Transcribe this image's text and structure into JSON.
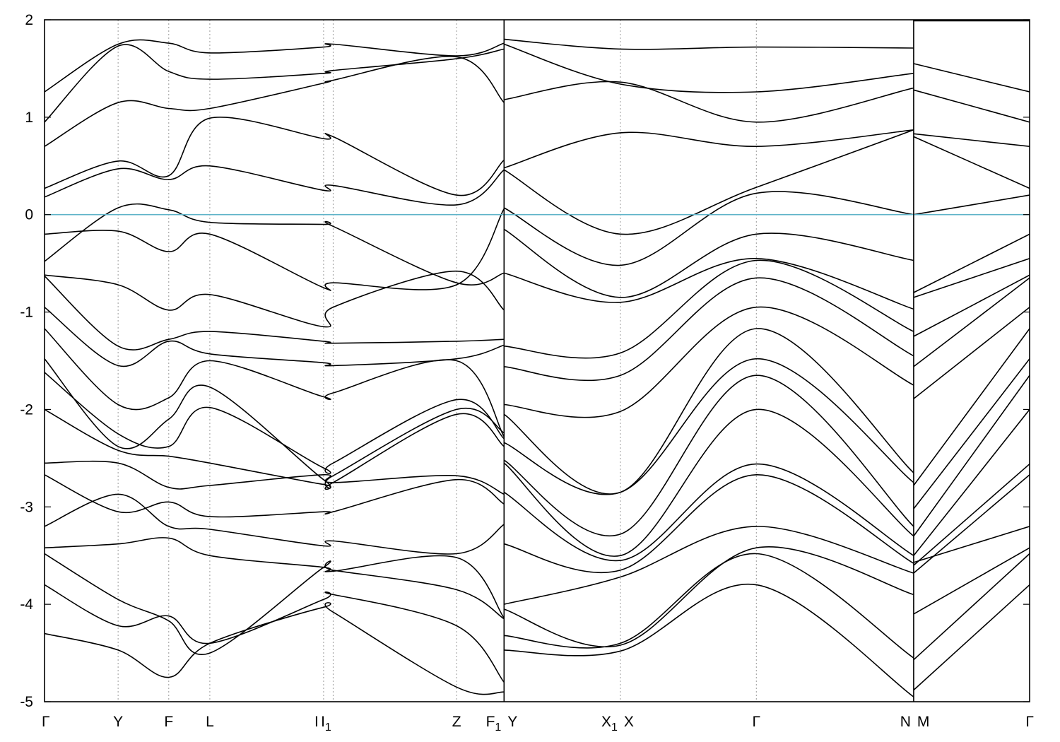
{
  "chart_data": {
    "type": "line",
    "title": "",
    "xlabel": "",
    "ylabel": "",
    "ylim": [
      -5,
      2
    ],
    "yticks": [
      -5,
      -4,
      -3,
      -2,
      -1,
      0,
      1,
      2
    ],
    "ytick_labels": [
      "-5",
      "-4",
      "-3",
      "-2",
      "-1",
      "0",
      "1",
      "2"
    ],
    "grid": "vertical dashed lines at high-symmetry points",
    "legend": "none",
    "fermi_level": {
      "value": 0,
      "color": "#5fb3c8"
    },
    "x_range": [
      0,
      1
    ],
    "kpoints": [
      {
        "label": "Γ",
        "x": 0.0
      },
      {
        "label": "Y",
        "x": 0.0747
      },
      {
        "label": "F",
        "x": 0.1261
      },
      {
        "label": "L",
        "x": 0.1678
      },
      {
        "label": "I",
        "x": 0.2833
      },
      {
        "label": "I",
        "sub": "1",
        "x": 0.293
      },
      {
        "label": "Z",
        "x": 0.4183
      },
      {
        "label": "F",
        "sub": "1",
        "x": 0.4665
      },
      {
        "label": "Y",
        "x": 0.4665
      },
      {
        "label": "X",
        "sub": "1",
        "x": 0.5846
      },
      {
        "label": "X",
        "x": 0.5846
      },
      {
        "label": "Γ",
        "x": 0.7226
      },
      {
        "label": "N",
        "x": 0.8823
      },
      {
        "label": "M",
        "x": 0.8823
      },
      {
        "label": "Γ",
        "x": 1.0
      }
    ],
    "breaks": [
      0.4665,
      0.8823
    ],
    "band_x": [
      0.0,
      0.0747,
      0.1261,
      0.1678,
      0.2833,
      0.293,
      0.4183,
      0.4665,
      0.4665,
      0.5846,
      0.7226,
      0.8823,
      0.8823,
      1.0
    ],
    "series": [
      {
        "values": [
          -4.3,
          -4.47,
          -4.75,
          -4.4,
          -4.03,
          -4.08,
          -4.85,
          -4.9,
          -4.47,
          -4.48,
          -3.8,
          -4.95,
          -4.88,
          -3.8
        ]
      },
      {
        "values": [
          -3.8,
          -4.22,
          -4.12,
          -4.4,
          -3.95,
          -3.9,
          -4.22,
          -4.8,
          -4.32,
          -4.4,
          -3.48,
          -4.55,
          -4.57,
          -3.48
        ]
      },
      {
        "values": [
          -3.48,
          -3.95,
          -4.17,
          -4.5,
          -3.62,
          -3.65,
          -3.85,
          -4.15,
          -4.05,
          -4.42,
          -3.42,
          -3.9,
          -4.1,
          -3.42
        ]
      },
      {
        "values": [
          -3.42,
          -3.38,
          -3.32,
          -3.5,
          -3.62,
          -3.66,
          -3.52,
          -4.14,
          -4.0,
          -3.72,
          -3.2,
          -3.68,
          -3.57,
          -3.2
        ]
      },
      {
        "values": [
          -3.2,
          -2.87,
          -3.2,
          -3.23,
          -3.4,
          -3.35,
          -3.48,
          -3.18,
          -3.38,
          -3.65,
          -2.67,
          -3.58,
          -3.68,
          -2.67
        ]
      },
      {
        "values": [
          -2.67,
          -3.05,
          -2.95,
          -3.1,
          -3.05,
          -3.05,
          -2.72,
          -2.97,
          -2.85,
          -3.55,
          -2.56,
          -3.5,
          -3.6,
          -2.56
        ]
      },
      {
        "values": [
          -2.55,
          -2.55,
          -2.8,
          -2.78,
          -2.67,
          -2.75,
          -2.68,
          -2.87,
          -2.55,
          -3.5,
          -2.0,
          -3.3,
          -3.5,
          -2.0
        ]
      },
      {
        "values": [
          -2.0,
          -2.42,
          -2.48,
          -2.55,
          -2.77,
          -2.75,
          -2.05,
          -2.38,
          -2.52,
          -3.28,
          -1.65,
          -3.2,
          -3.3,
          -1.65
        ]
      },
      {
        "values": [
          -1.62,
          -2.25,
          -2.38,
          -1.98,
          -2.6,
          -2.55,
          -1.9,
          -2.3,
          -2.34,
          -2.85,
          -1.48,
          -2.75,
          -3.02,
          -1.48
        ]
      },
      {
        "values": [
          -1.48,
          -2.38,
          -2.1,
          -1.77,
          -2.72,
          -2.68,
          -2.0,
          -2.24,
          -2.05,
          -2.85,
          -1.17,
          -2.65,
          -2.78,
          -1.17
        ]
      },
      {
        "values": [
          -1.17,
          -1.95,
          -1.88,
          -1.5,
          -1.87,
          -1.83,
          -1.5,
          -2.28,
          -1.95,
          -2.02,
          -0.95,
          -1.75,
          -1.89,
          -0.95
        ]
      },
      {
        "values": [
          -0.95,
          -1.55,
          -1.3,
          -1.43,
          -1.52,
          -1.55,
          -1.48,
          -1.34,
          -1.56,
          -1.65,
          -0.65,
          -1.45,
          -1.56,
          -0.65
        ]
      },
      {
        "values": [
          -0.63,
          -1.35,
          -1.28,
          -1.2,
          -1.3,
          -1.32,
          -1.3,
          -1.28,
          -1.35,
          -1.42,
          -0.47,
          -1.2,
          -1.25,
          -0.62
        ]
      },
      {
        "values": [
          -0.62,
          -0.72,
          -0.98,
          -0.82,
          -1.15,
          -0.95,
          -0.58,
          -0.98,
          -0.6,
          -0.9,
          -0.45,
          -0.97,
          -0.85,
          -0.45
        ]
      },
      {
        "values": [
          -0.48,
          0.07,
          0.05,
          -0.08,
          -0.1,
          -0.12,
          -0.7,
          -0.6,
          -0.15,
          -0.85,
          -0.2,
          -0.47,
          -0.8,
          -0.2
        ]
      },
      {
        "values": [
          -0.2,
          -0.17,
          -0.38,
          -0.2,
          -0.75,
          -0.7,
          -0.72,
          0.06,
          0.07,
          -0.52,
          0.22,
          0.0,
          0.0,
          0.2
        ]
      },
      {
        "values": [
          0.18,
          0.47,
          0.36,
          0.5,
          0.25,
          0.3,
          0.1,
          0.46,
          0.46,
          -0.2,
          0.28,
          0.87,
          0.8,
          0.27
        ]
      },
      {
        "values": [
          0.27,
          0.55,
          0.4,
          0.99,
          0.78,
          0.8,
          0.2,
          0.56,
          0.48,
          0.84,
          0.7,
          0.87,
          0.83,
          0.7
        ]
      },
      {
        "values": [
          0.7,
          1.15,
          1.09,
          1.09,
          1.35,
          1.38,
          1.62,
          1.15,
          1.18,
          1.36,
          0.95,
          1.3,
          1.28,
          0.95
        ]
      },
      {
        "values": [
          0.95,
          1.73,
          1.47,
          1.39,
          1.45,
          1.48,
          1.6,
          1.7,
          1.75,
          1.34,
          1.26,
          1.45,
          1.55,
          1.26
        ]
      },
      {
        "values": [
          1.26,
          1.75,
          1.76,
          1.66,
          1.72,
          1.75,
          1.63,
          1.76,
          1.8,
          1.7,
          1.72,
          1.71,
          1.99,
          1.99
        ]
      }
    ]
  }
}
